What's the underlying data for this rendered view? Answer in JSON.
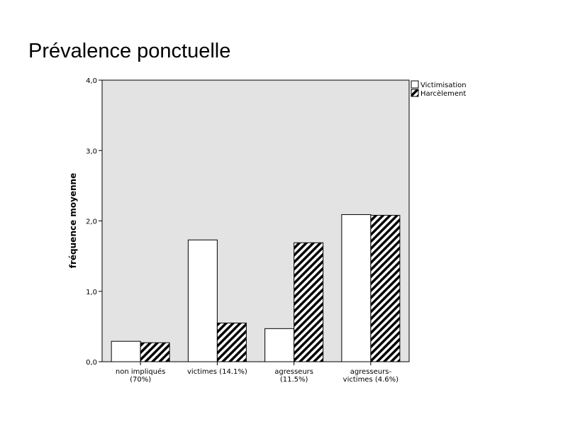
{
  "slide": {
    "title": "Prévalence ponctuelle"
  },
  "colors": {
    "plot_background": "#e3e3e3",
    "victimisation_fill": "#ffffff",
    "harcelement_hatch": "#000000"
  },
  "chart_data": {
    "type": "bar",
    "ylabel": "fréquence moyenne",
    "ylim": [
      0,
      4
    ],
    "yticks": [
      "0,0",
      "1,0",
      "2,0",
      "3,0",
      "4,0"
    ],
    "categories": [
      [
        "non impliqués",
        "(70%)"
      ],
      [
        "victimes (14.1%)"
      ],
      [
        "agresseurs",
        "(11.5%)"
      ],
      [
        "agresseurs-",
        "victimes (4.6%)"
      ]
    ],
    "series": [
      {
        "name": "Victimisation",
        "pattern": "solid-white",
        "values": [
          0.29,
          1.73,
          0.47,
          2.09
        ]
      },
      {
        "name": "Harcèlement",
        "pattern": "diagonal-hatch",
        "values": [
          0.27,
          0.55,
          1.69,
          2.08
        ]
      }
    ],
    "legend_position": "top-right-outside",
    "grid": false
  }
}
